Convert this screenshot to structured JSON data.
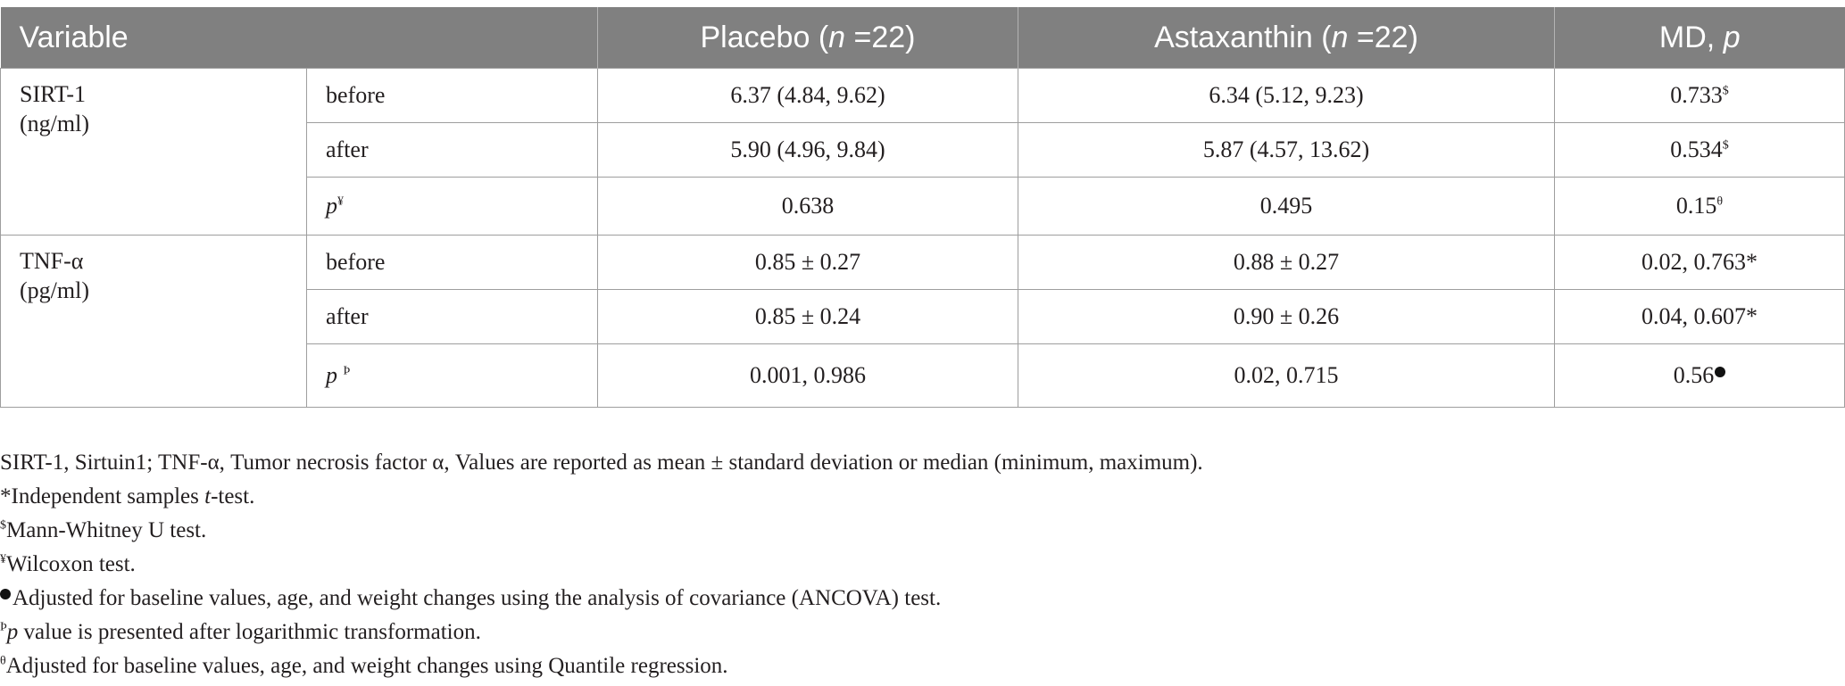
{
  "header": {
    "variable": "Variable",
    "placebo": {
      "label": "Placebo (",
      "n": "n",
      "count": " =22)"
    },
    "astaxanthin": {
      "label": "Astaxanthin (",
      "n": "n",
      "count": " =22)"
    },
    "md": {
      "label": "MD, ",
      "p": "p"
    }
  },
  "groups": [
    {
      "name": "SIRT-1",
      "unit": "(ng/ml)",
      "rows": [
        {
          "label": "before",
          "placebo": "6.37 (4.84, 9.62)",
          "astaxanthin": "6.34 (5.12, 9.23)",
          "md": "0.733",
          "md_mark": "$"
        },
        {
          "label": "after",
          "placebo": "5.90 (4.96, 9.84)",
          "astaxanthin": "5.87 (4.57, 13.62)",
          "md": "0.534",
          "md_mark": "$"
        },
        {
          "label": "p",
          "label_mark": "¥",
          "placebo": "0.638",
          "astaxanthin": "0.495",
          "md": "0.15",
          "md_mark": "θ"
        }
      ]
    },
    {
      "name": "TNF-α",
      "unit": "(pg/ml)",
      "rows": [
        {
          "label": "before",
          "placebo": "0.85 ± 0.27",
          "astaxanthin": "0.88 ± 0.27",
          "md": "0.02, 0.763*"
        },
        {
          "label": "after",
          "placebo": "0.85 ± 0.24",
          "astaxanthin": "0.90 ± 0.26",
          "md": "0.04, 0.607*"
        },
        {
          "label": "p",
          "label_mark": "Þ",
          "placebo": "0.001, 0.986",
          "astaxanthin": "0.02, 0.715",
          "md": "0.56",
          "md_icon": "filled-circle-icon"
        }
      ]
    }
  ],
  "footnotes": {
    "abbrev": "SIRT-1, Sirtuin1; TNF-α, Tumor necrosis factor α, Values are reported as mean ± standard deviation or median (minimum, maximum).",
    "ttest_pre": "*Independent samples ",
    "ttest_t": "t",
    "ttest_post": "-test.",
    "mw_mark": "$",
    "mw": "Mann-Whitney U test.",
    "wil_mark": "¥",
    "wil": "Wilcoxon test.",
    "ancova": "Adjusted for baseline values, age, and weight changes using the analysis of covariance (ANCOVA) test.",
    "log_mark": "Þ",
    "log_p": "p",
    "log": " value is presented after logarithmic transformation.",
    "qr_mark": "θ",
    "qr": "Adjusted for baseline values, age, and weight changes using Quantile regression."
  }
}
